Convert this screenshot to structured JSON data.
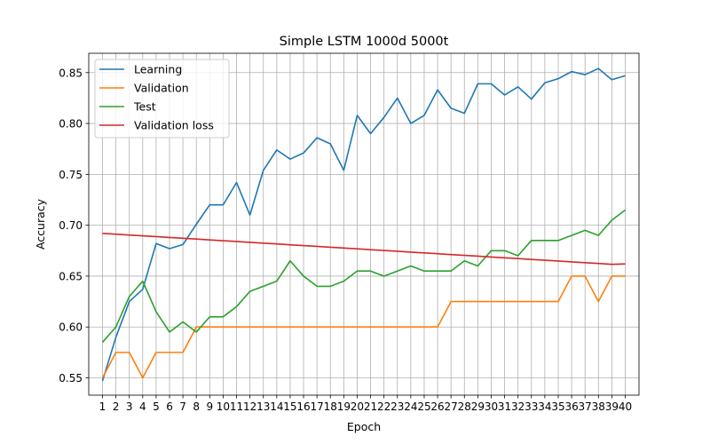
{
  "chart_data": {
    "type": "line",
    "title": "Simple LSTM 1000d 5000t",
    "xlabel": "Epoch",
    "ylabel": "Accuracy",
    "x": [
      1,
      2,
      3,
      4,
      5,
      6,
      7,
      8,
      9,
      10,
      11,
      12,
      13,
      14,
      15,
      16,
      17,
      18,
      19,
      20,
      21,
      22,
      23,
      24,
      25,
      26,
      27,
      28,
      29,
      30,
      31,
      32,
      33,
      34,
      35,
      36,
      37,
      38,
      39,
      40
    ],
    "xticks": [
      "1",
      "2",
      "3",
      "4",
      "5",
      "6",
      "7",
      "8",
      "9",
      "10",
      "11",
      "12",
      "13",
      "14",
      "15",
      "16",
      "17",
      "18",
      "19",
      "20",
      "21",
      "22",
      "23",
      "24",
      "25",
      "26",
      "27",
      "28",
      "29",
      "30",
      "31",
      "32",
      "33",
      "34",
      "35",
      "36",
      "37",
      "38",
      "39",
      "40"
    ],
    "ylim": [
      0.533,
      0.869
    ],
    "yticks": [
      "0.55",
      "0.60",
      "0.65",
      "0.70",
      "0.75",
      "0.80",
      "0.85"
    ],
    "grid": true,
    "legend_position": "top-left",
    "series": [
      {
        "name": "Learning",
        "color": "#1f77b4",
        "values": [
          0.547,
          0.59,
          0.625,
          0.637,
          0.682,
          0.677,
          0.681,
          0.701,
          0.72,
          0.72,
          0.742,
          0.71,
          0.754,
          0.774,
          0.765,
          0.771,
          0.786,
          0.78,
          0.754,
          0.808,
          0.79,
          0.806,
          0.825,
          0.8,
          0.808,
          0.833,
          0.815,
          0.81,
          0.839,
          0.839,
          0.828,
          0.836,
          0.824,
          0.84,
          0.844,
          0.851,
          0.848,
          0.854,
          0.843,
          0.847
        ]
      },
      {
        "name": "Validation",
        "color": "#ff7f0e",
        "values": [
          0.55,
          0.575,
          0.575,
          0.55,
          0.575,
          0.575,
          0.575,
          0.6,
          0.6,
          0.6,
          0.6,
          0.6,
          0.6,
          0.6,
          0.6,
          0.6,
          0.6,
          0.6,
          0.6,
          0.6,
          0.6,
          0.6,
          0.6,
          0.6,
          0.6,
          0.6,
          0.625,
          0.625,
          0.625,
          0.625,
          0.625,
          0.625,
          0.625,
          0.625,
          0.625,
          0.65,
          0.65,
          0.625,
          0.65,
          0.65
        ]
      },
      {
        "name": "Test",
        "color": "#2ca02c",
        "values": [
          0.585,
          0.6,
          0.63,
          0.645,
          0.615,
          0.595,
          0.605,
          0.595,
          0.61,
          0.61,
          0.62,
          0.635,
          0.64,
          0.645,
          0.665,
          0.65,
          0.64,
          0.64,
          0.645,
          0.655,
          0.655,
          0.65,
          0.655,
          0.66,
          0.655,
          0.655,
          0.655,
          0.665,
          0.66,
          0.675,
          0.675,
          0.67,
          0.685,
          0.685,
          0.685,
          0.69,
          0.695,
          0.69,
          0.705,
          0.715
        ]
      },
      {
        "name": "Validation loss",
        "color": "#d62728",
        "values": [
          0.692,
          0.6912,
          0.6904,
          0.6896,
          0.6888,
          0.688,
          0.6872,
          0.6864,
          0.6856,
          0.6848,
          0.684,
          0.6832,
          0.6824,
          0.6816,
          0.6808,
          0.68,
          0.6792,
          0.6784,
          0.6776,
          0.6768,
          0.676,
          0.6752,
          0.6744,
          0.6736,
          0.6728,
          0.672,
          0.6712,
          0.6704,
          0.6696,
          0.6688,
          0.668,
          0.6672,
          0.6664,
          0.6656,
          0.6648,
          0.664,
          0.6632,
          0.6624,
          0.6616,
          0.662
        ]
      }
    ]
  }
}
